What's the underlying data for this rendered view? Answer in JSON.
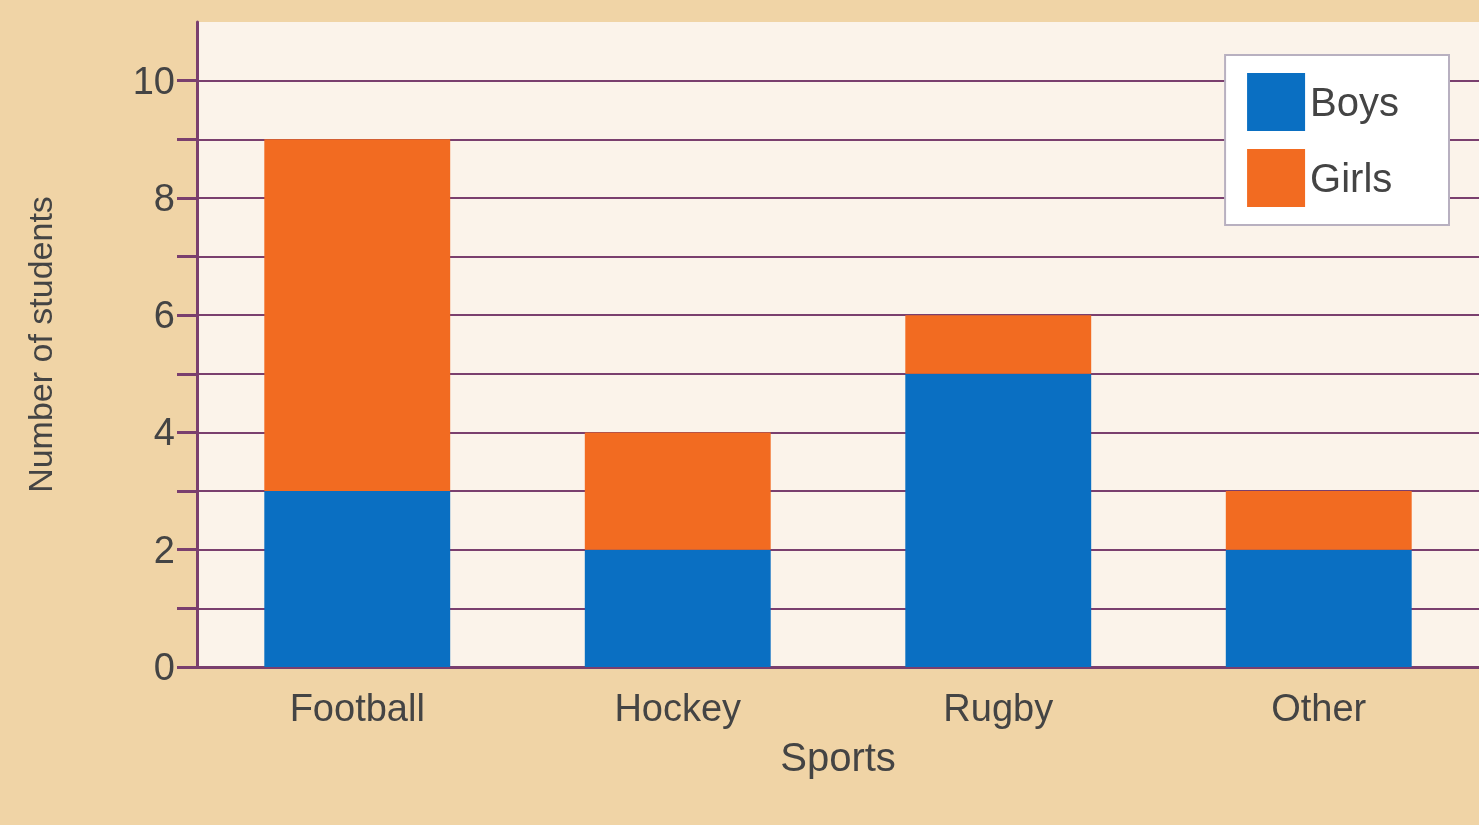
{
  "chart_data": {
    "type": "bar",
    "stacked": true,
    "xlabel": "Sports",
    "ylabel": "Number of students",
    "categories": [
      "Football",
      "Hockey",
      "Rugby",
      "Other"
    ],
    "series": [
      {
        "name": "Boys",
        "color": "#0a6fc2",
        "values": [
          3,
          2,
          5,
          2
        ]
      },
      {
        "name": "Girls",
        "color": "#f26b21",
        "values": [
          6,
          2,
          1,
          1
        ]
      }
    ],
    "ylim": [
      0,
      11
    ],
    "yticks": [
      0,
      {
        "value": 1,
        "label": null
      },
      2,
      {
        "value": 3,
        "label": null
      },
      4,
      {
        "value": 5,
        "label": null
      },
      6,
      {
        "value": 7,
        "label": null
      },
      8,
      {
        "value": 9,
        "label": null
      },
      10
    ],
    "grid": "y",
    "legend": "top right"
  }
}
